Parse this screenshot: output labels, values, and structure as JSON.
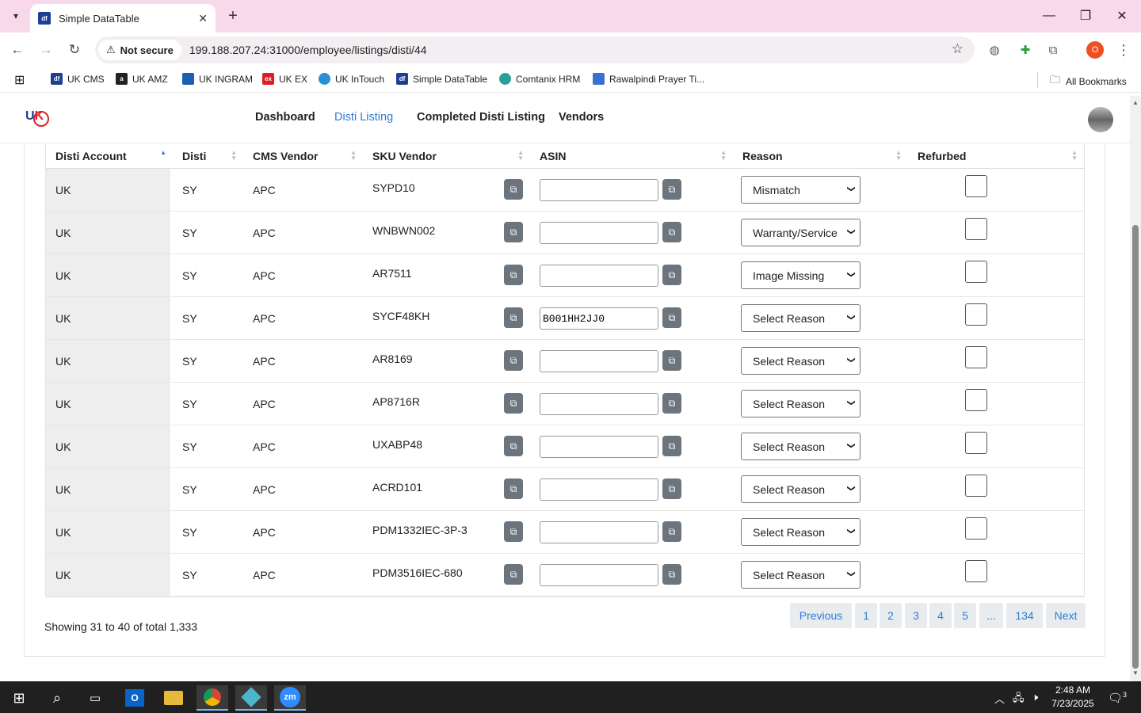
{
  "browser": {
    "tab_title": "Simple DataTable",
    "tab_favicon": "df",
    "not_secure_label": "Not secure",
    "url": "199.188.207.24:31000/employee/listings/disti/44",
    "profile_initial": "O",
    "bookmarks": [
      {
        "label": "UK CMS",
        "icon": "df",
        "color": "#1c3f94"
      },
      {
        "label": "UK AMZ",
        "icon": "a",
        "color": "#222222"
      },
      {
        "label": "UK INGRAM",
        "icon": "",
        "color": "#1a5fb4"
      },
      {
        "label": "UK EX",
        "icon": "ex",
        "color": "#e01b24"
      },
      {
        "label": "UK InTouch",
        "icon": "",
        "color": "#2a8fd6"
      },
      {
        "label": "Simple DataTable",
        "icon": "df",
        "color": "#1c3f94"
      },
      {
        "label": "Comtanix HRM",
        "icon": "",
        "color": "#2aa198"
      },
      {
        "label": "Rawalpindi Prayer Ti...",
        "icon": "",
        "color": "#3b6fd1"
      }
    ],
    "all_bookmarks_label": "All Bookmarks"
  },
  "nav": {
    "links": [
      "Dashboard",
      "Disti Listing",
      "Completed Disti Listing",
      "Vendors"
    ],
    "active": "Disti Listing"
  },
  "table": {
    "columns": [
      "Disti Account",
      "Disti",
      "CMS Vendor",
      "SKU Vendor",
      "ASIN",
      "Reason",
      "Refurbed"
    ],
    "rows": [
      {
        "account": "UK",
        "disti": "SY",
        "vendor": "APC",
        "sku": "SYPD10",
        "asin": "",
        "reason": "Mismatch"
      },
      {
        "account": "UK",
        "disti": "SY",
        "vendor": "APC",
        "sku": "WNBWN002",
        "asin": "",
        "reason": "Warranty/Service"
      },
      {
        "account": "UK",
        "disti": "SY",
        "vendor": "APC",
        "sku": "AR7511",
        "asin": "",
        "reason": "Image Missing"
      },
      {
        "account": "UK",
        "disti": "SY",
        "vendor": "APC",
        "sku": "SYCF48KH",
        "asin": "B001HH2JJ0",
        "reason": "Select Reason"
      },
      {
        "account": "UK",
        "disti": "SY",
        "vendor": "APC",
        "sku": "AR8169",
        "asin": "",
        "reason": "Select Reason"
      },
      {
        "account": "UK",
        "disti": "SY",
        "vendor": "APC",
        "sku": "AP8716R",
        "asin": "",
        "reason": "Select Reason"
      },
      {
        "account": "UK",
        "disti": "SY",
        "vendor": "APC",
        "sku": "UXABP48",
        "asin": "",
        "reason": "Select Reason"
      },
      {
        "account": "UK",
        "disti": "SY",
        "vendor": "APC",
        "sku": "ACRD101",
        "asin": "",
        "reason": "Select Reason"
      },
      {
        "account": "UK",
        "disti": "SY",
        "vendor": "APC",
        "sku": "PDM1332IEC-3P-3",
        "asin": "",
        "reason": "Select Reason"
      },
      {
        "account": "UK",
        "disti": "SY",
        "vendor": "APC",
        "sku": "PDM3516IEC-680",
        "asin": "",
        "reason": "Select Reason"
      }
    ]
  },
  "footer": {
    "showing": "Showing 31 to 40 of total 1,333",
    "pagination": [
      "Previous",
      "1",
      "2",
      "3",
      "4",
      "5",
      "...",
      "134",
      "Next"
    ]
  },
  "taskbar": {
    "time": "2:48 AM",
    "date": "7/23/2025",
    "notification_count": "3"
  }
}
